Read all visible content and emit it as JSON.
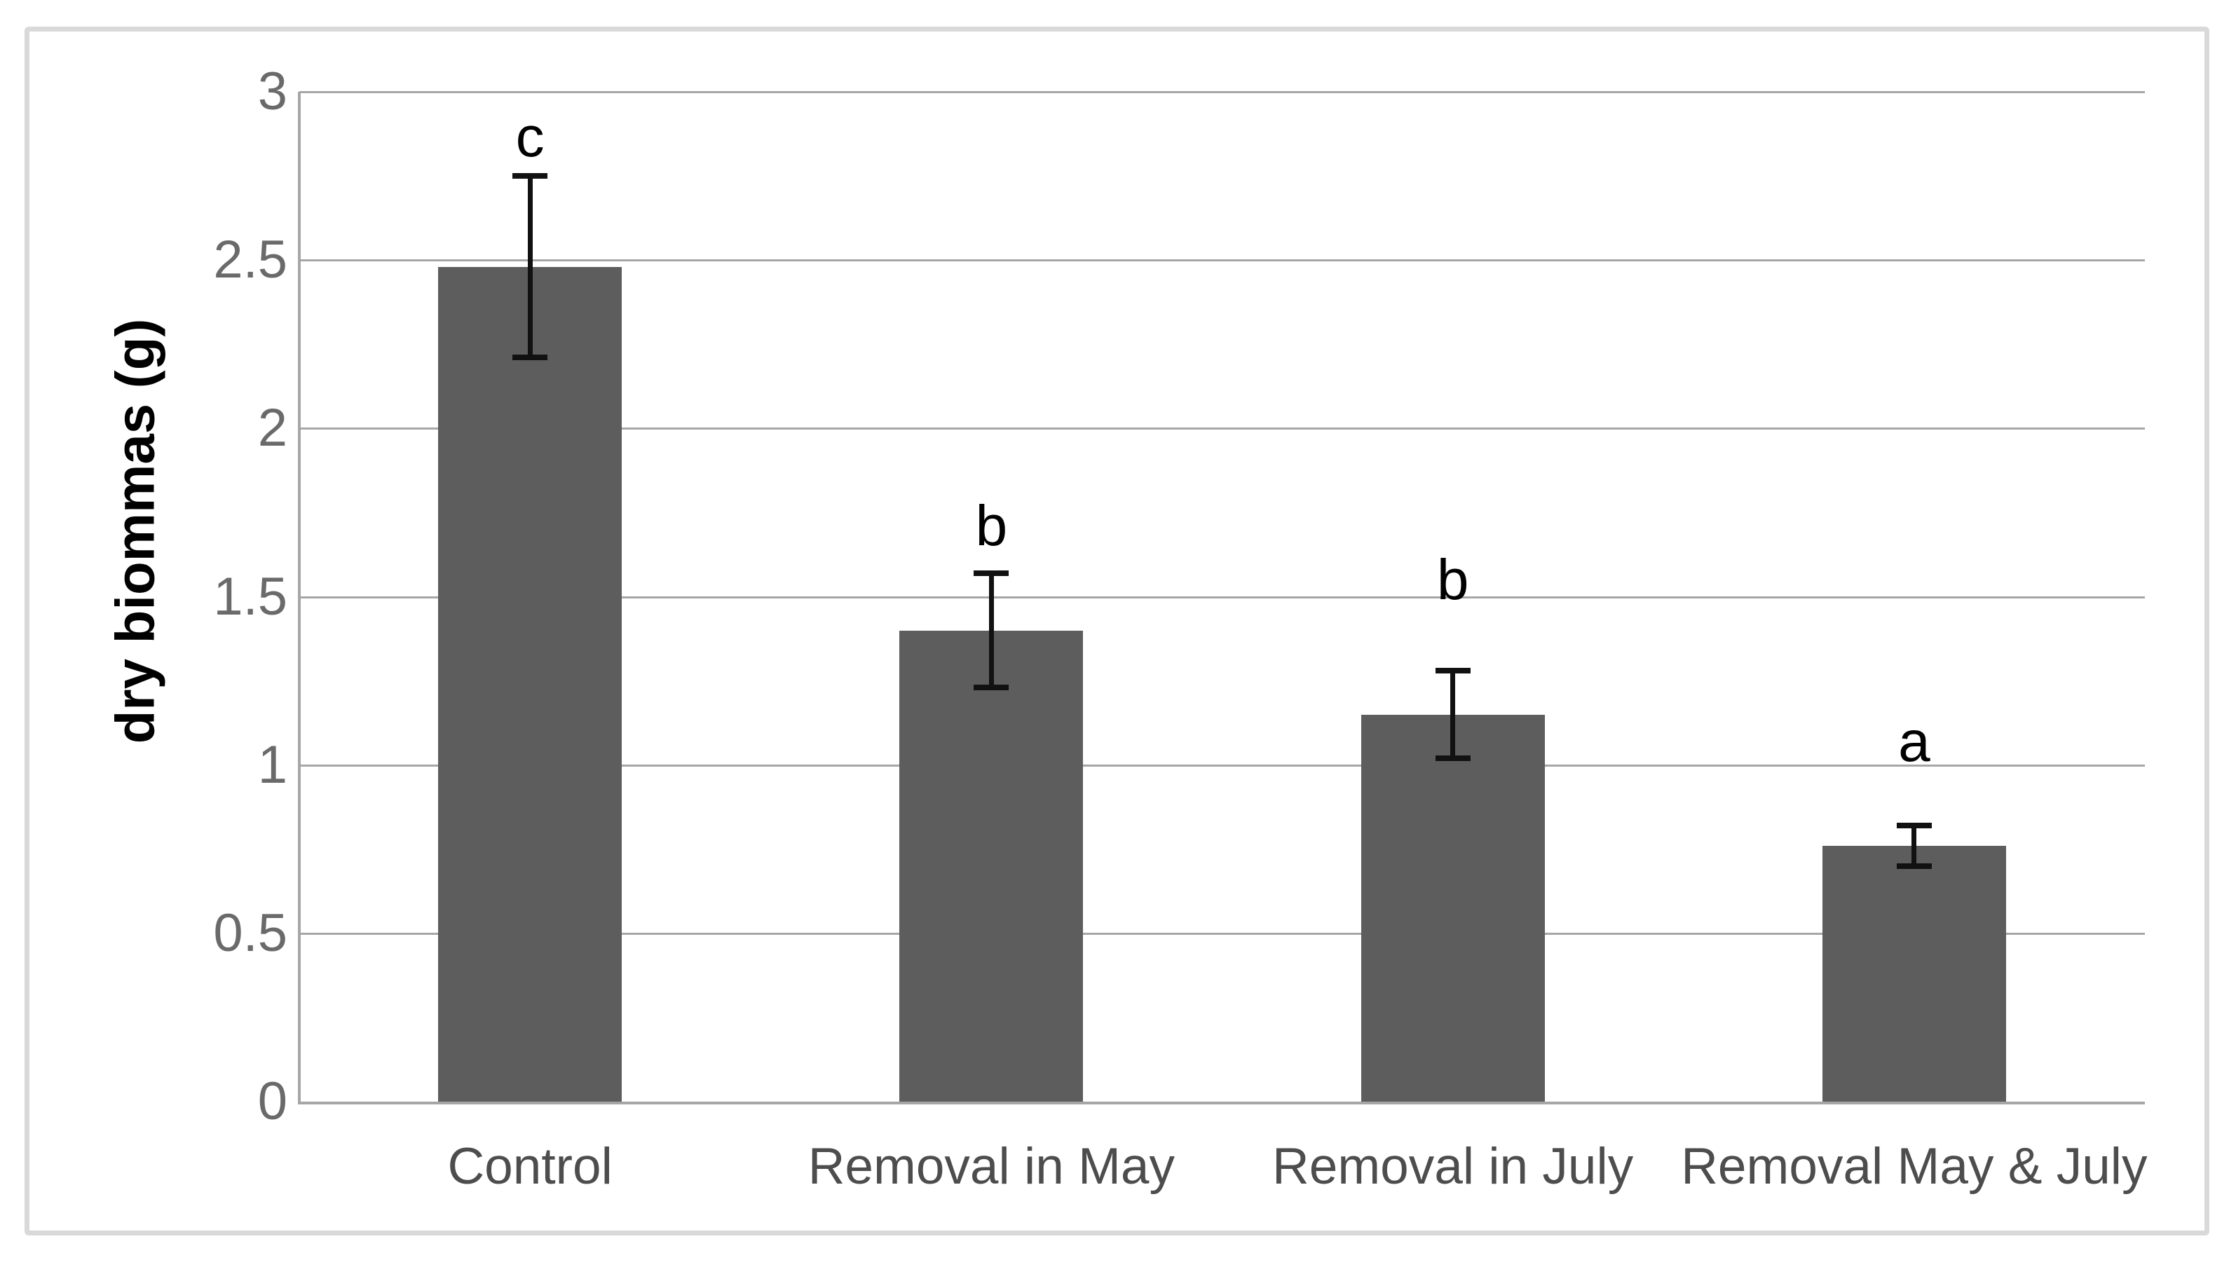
{
  "chart_data": {
    "type": "bar",
    "title": "",
    "xlabel": "",
    "ylabel": "dry biommas (g)",
    "ylim": [
      0,
      3
    ],
    "ytick_interval": 0.5,
    "y_tick_labels": [
      "0",
      "0.5",
      "1",
      "1.5",
      "2",
      "2.5",
      "3"
    ],
    "grid": true,
    "legend": "none",
    "categories": [
      "Control",
      "Removal in May",
      "Removal in July",
      "Removal May & July"
    ],
    "values": [
      2.48,
      1.4,
      1.15,
      0.76
    ],
    "error_bars": [
      0.27,
      0.17,
      0.13,
      0.06
    ],
    "significance_letters": [
      "c",
      "b",
      "b",
      "a"
    ],
    "colors": {
      "bar_fill": "#5d5d5d",
      "gridline": "#a6a6a6",
      "axis_line": "#a6a6a6",
      "error_bar": "#111111",
      "tick_label": "#6a6a6a",
      "category_label": "#4d4d4d",
      "axis_title": "#000000",
      "figure_border": "#d9d9d9",
      "background": "#ffffff"
    }
  }
}
